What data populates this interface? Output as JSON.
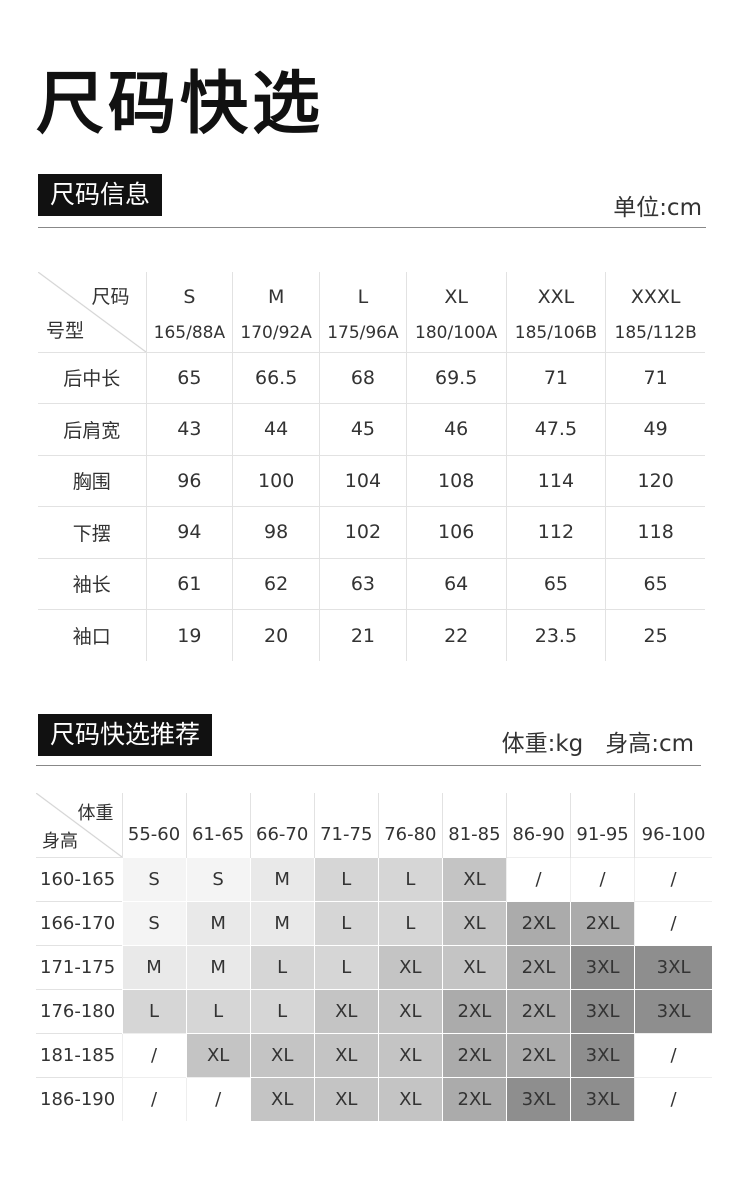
{
  "title": "尺码快选",
  "info": {
    "heading": "尺码信息",
    "unit": "单位:cm",
    "corner_top": "尺码",
    "corner_bottom": "号型",
    "sizes": [
      {
        "size": "S",
        "code": "165/88A"
      },
      {
        "size": "M",
        "code": "170/92A"
      },
      {
        "size": "L",
        "code": "175/96A"
      },
      {
        "size": "XL",
        "code": "180/100A"
      },
      {
        "size": "XXL",
        "code": "185/106B"
      },
      {
        "size": "XXXL",
        "code": "185/112B"
      }
    ],
    "rows": [
      {
        "label": "后中长",
        "values": [
          "65",
          "66.5",
          "68",
          "69.5",
          "71",
          "71"
        ]
      },
      {
        "label": "后肩宽",
        "values": [
          "43",
          "44",
          "45",
          "46",
          "47.5",
          "49"
        ]
      },
      {
        "label": "胸围",
        "values": [
          "96",
          "100",
          "104",
          "108",
          "114",
          "120"
        ]
      },
      {
        "label": "下摆",
        "values": [
          "94",
          "98",
          "102",
          "106",
          "112",
          "118"
        ]
      },
      {
        "label": "袖长",
        "values": [
          "61",
          "62",
          "63",
          "64",
          "65",
          "65"
        ]
      },
      {
        "label": "袖口",
        "values": [
          "19",
          "20",
          "21",
          "22",
          "23.5",
          "25"
        ]
      }
    ]
  },
  "recommend": {
    "heading": "尺码快选推荐",
    "unit": "体重:kg   身高:cm",
    "corner_top": "体重",
    "corner_bottom": "身高",
    "weights": [
      "55-60",
      "61-65",
      "66-70",
      "71-75",
      "76-80",
      "81-85",
      "86-90",
      "91-95",
      "96-100"
    ],
    "rows": [
      {
        "label": "160-165",
        "values": [
          "S",
          "S",
          "M",
          "L",
          "L",
          "XL",
          "/",
          "/",
          "/"
        ]
      },
      {
        "label": "166-170",
        "values": [
          "S",
          "M",
          "M",
          "L",
          "L",
          "XL",
          "2XL",
          "2XL",
          "/"
        ]
      },
      {
        "label": "171-175",
        "values": [
          "M",
          "M",
          "L",
          "L",
          "XL",
          "XL",
          "2XL",
          "3XL",
          "3XL"
        ]
      },
      {
        "label": "176-180",
        "values": [
          "L",
          "L",
          "L",
          "XL",
          "XL",
          "2XL",
          "2XL",
          "3XL",
          "3XL"
        ]
      },
      {
        "label": "181-185",
        "values": [
          "/",
          "XL",
          "XL",
          "XL",
          "XL",
          "2XL",
          "2XL",
          "3XL",
          "/"
        ]
      },
      {
        "label": "186-190",
        "values": [
          "/",
          "/",
          "XL",
          "XL",
          "XL",
          "2XL",
          "3XL",
          "3XL",
          "/"
        ]
      }
    ],
    "colors": {
      "S": "#f4f4f4",
      "M": "#e9e9e9",
      "L": "#d6d6d6",
      "XL": "#c4c4c4",
      "2XL": "#ababab",
      "3XL": "#8e8e8e",
      "/": "#ffffff"
    }
  }
}
